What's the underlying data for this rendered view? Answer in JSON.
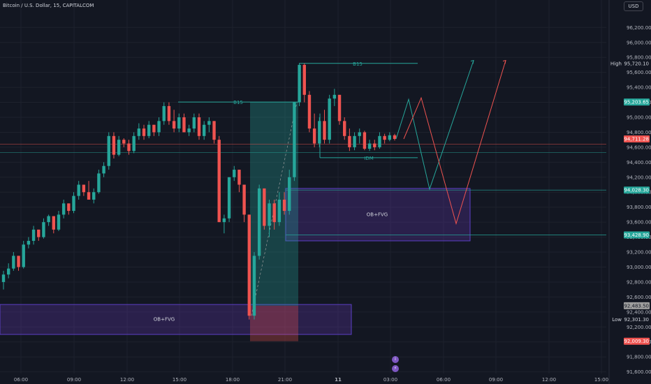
{
  "header": {
    "symbol_title": "Bitcoin / U.S. Dollar, 15, CAPITALCOM",
    "currency_button": "USD"
  },
  "icons": {
    "indicator_icon_1": "info-icon",
    "indicator_icon_2": "lightning-icon"
  },
  "colors": {
    "background": "#131722",
    "grid": "#1e222d",
    "up": "#26a69a",
    "down": "#ef5350",
    "zone_fill": "rgba(103,58,183,0.28)",
    "zone_border": "#5b3fc4",
    "text": "#d1d4dc"
  },
  "chart_data": {
    "type": "candlestick",
    "x_ticks": [
      "06:00",
      "09:00",
      "12:00",
      "15:00",
      "18:00",
      "21:00",
      "11",
      "03:00",
      "06:00",
      "09:00",
      "12:00",
      "15:00"
    ],
    "y_ticks": [
      91600,
      91800,
      92000,
      92200,
      92400,
      92600,
      92800,
      93000,
      93200,
      93400,
      93600,
      93800,
      94000,
      94200,
      94400,
      94600,
      94800,
      95000,
      95200,
      95400,
      95600,
      95800,
      96000,
      96200
    ],
    "ylim": [
      91550,
      96380
    ],
    "price_tags": [
      {
        "label": "High",
        "value": "95,720.10",
        "price": 95720.1,
        "bg": "#131722",
        "fg": "#d1d4dc"
      },
      {
        "label": "",
        "value": "95,203.65",
        "price": 95203.65,
        "bg": "#26a69a",
        "fg": "#ffffff"
      },
      {
        "label": "",
        "value": "94,711.28",
        "price": 94711.28,
        "bg": "#ef5350",
        "fg": "#ffffff"
      },
      {
        "label": "",
        "value": "94,028.30",
        "price": 94028.3,
        "bg": "#26a69a",
        "fg": "#ffffff"
      },
      {
        "label": "",
        "value": "93,428.90",
        "price": 93428.9,
        "bg": "#26a69a",
        "fg": "#ffffff"
      },
      {
        "label": "",
        "value": "92,483.50",
        "price": 92483.5,
        "bg": "#9e9e9e",
        "fg": "#131722"
      },
      {
        "label": "Low",
        "value": "92,301.30",
        "price": 92301.3,
        "bg": "#131722",
        "fg": "#d1d4dc"
      },
      {
        "label": "",
        "value": "92,009.30",
        "price": 92009.3,
        "bg": "#ef5350",
        "fg": "#ffffff"
      }
    ],
    "annotations": [
      {
        "text": "B15",
        "level": 95720.1
      },
      {
        "text": "B15",
        "level": 95203.65
      },
      {
        "text": "IDM",
        "level": 94460
      },
      {
        "text": "OB+FVG",
        "zone": [
          92100,
          92500
        ]
      },
      {
        "text": "OB+FVG",
        "zone": [
          93350,
          94050
        ]
      }
    ],
    "candles": [
      [
        92800,
        92950,
        92700,
        92900
      ],
      [
        92900,
        93050,
        92850,
        92980
      ],
      [
        92980,
        93200,
        92950,
        93150
      ],
      [
        93150,
        93150,
        92950,
        93000
      ],
      [
        93000,
        93350,
        92980,
        93300
      ],
      [
        93300,
        93400,
        93250,
        93350
      ],
      [
        93350,
        93550,
        93300,
        93500
      ],
      [
        93500,
        93500,
        93350,
        93400
      ],
      [
        93400,
        93650,
        93380,
        93600
      ],
      [
        93600,
        93700,
        93550,
        93680
      ],
      [
        93680,
        93680,
        93450,
        93500
      ],
      [
        93500,
        93750,
        93480,
        93700
      ],
      [
        93700,
        93900,
        93650,
        93850
      ],
      [
        93850,
        93850,
        93700,
        93750
      ],
      [
        93750,
        94000,
        93720,
        93950
      ],
      [
        93950,
        94150,
        93900,
        94100
      ],
      [
        94100,
        94100,
        93950,
        94000
      ],
      [
        94000,
        94150,
        93900,
        93900
      ],
      [
        93900,
        94050,
        93850,
        94000
      ],
      [
        94000,
        94300,
        93980,
        94250
      ],
      [
        94250,
        94400,
        94200,
        94350
      ],
      [
        94350,
        94800,
        94300,
        94750
      ],
      [
        94750,
        94800,
        94450,
        94500
      ],
      [
        94500,
        94750,
        94480,
        94700
      ],
      [
        94700,
        94720,
        94600,
        94650
      ],
      [
        94650,
        94700,
        94500,
        94550
      ],
      [
        94550,
        94800,
        94520,
        94750
      ],
      [
        94750,
        94920,
        94700,
        94850
      ],
      [
        94850,
        94900,
        94700,
        94750
      ],
      [
        94750,
        94950,
        94720,
        94900
      ],
      [
        94900,
        94900,
        94750,
        94800
      ],
      [
        94800,
        95000,
        94750,
        94950
      ],
      [
        94950,
        95200,
        94900,
        95150
      ],
      [
        95150,
        95200,
        94900,
        94950
      ],
      [
        94950,
        95100,
        94800,
        94850
      ],
      [
        94850,
        95050,
        94800,
        95000
      ],
      [
        95000,
        95050,
        94800,
        94800
      ],
      [
        94800,
        94900,
        94750,
        94850
      ],
      [
        94850,
        95050,
        94800,
        95000
      ],
      [
        95000,
        95050,
        94700,
        94750
      ],
      [
        94750,
        94950,
        94700,
        94900
      ],
      [
        94900,
        95000,
        94800,
        94950
      ],
      [
        94950,
        94950,
        94650,
        94700
      ],
      [
        94700,
        94750,
        93600,
        93600
      ],
      [
        93600,
        93700,
        93450,
        93650
      ],
      [
        93650,
        94200,
        93600,
        94200
      ],
      [
        94200,
        94350,
        94150,
        94300
      ],
      [
        94300,
        94300,
        94000,
        94100
      ],
      [
        94100,
        94100,
        93600,
        93700
      ],
      [
        93700,
        93700,
        92300,
        92350
      ],
      [
        92350,
        93200,
        92300,
        93150
      ],
      [
        93150,
        94100,
        93100,
        94050
      ],
      [
        94050,
        94050,
        93500,
        93550
      ],
      [
        93550,
        93900,
        93400,
        93850
      ],
      [
        93850,
        93900,
        93500,
        93600
      ],
      [
        93600,
        94000,
        93550,
        93900
      ],
      [
        93900,
        94000,
        93700,
        93750
      ],
      [
        93750,
        94300,
        93700,
        94200
      ],
      [
        94200,
        95200,
        94150,
        95200
      ],
      [
        95200,
        95720,
        95150,
        95700
      ],
      [
        95700,
        95720,
        95200,
        95300
      ],
      [
        95300,
        95350,
        94800,
        94850
      ],
      [
        94850,
        95050,
        94600,
        94650
      ],
      [
        94650,
        95000,
        94600,
        94950
      ],
      [
        94950,
        95100,
        94650,
        94700
      ],
      [
        94700,
        95300,
        94650,
        95250
      ],
      [
        95250,
        95380,
        95150,
        95300
      ],
      [
        95300,
        95300,
        94900,
        94950
      ],
      [
        94950,
        95000,
        94700,
        94750
      ],
      [
        94750,
        94850,
        94550,
        94600
      ],
      [
        94600,
        94800,
        94560,
        94750
      ],
      [
        94750,
        94850,
        94650,
        94800
      ],
      [
        94800,
        94820,
        94560,
        94580
      ],
      [
        94580,
        94700,
        94550,
        94650
      ],
      [
        94650,
        94700,
        94560,
        94600
      ],
      [
        94600,
        94800,
        94580,
        94750
      ],
      [
        94750,
        94780,
        94650,
        94700
      ],
      [
        94700,
        94800,
        94680,
        94760
      ],
      [
        94760,
        94780,
        94690,
        94711
      ]
    ],
    "projections": [
      {
        "color": "green",
        "points": [
          [
            94711,
            "now"
          ],
          [
            95200,
            "+1"
          ],
          [
            94000,
            "+2"
          ],
          [
            95700,
            "+3"
          ]
        ]
      },
      {
        "color": "red",
        "points": [
          [
            94711,
            "now"
          ],
          [
            95200,
            "+1"
          ],
          [
            93600,
            "+2"
          ],
          [
            95700,
            "+3"
          ]
        ]
      }
    ]
  }
}
